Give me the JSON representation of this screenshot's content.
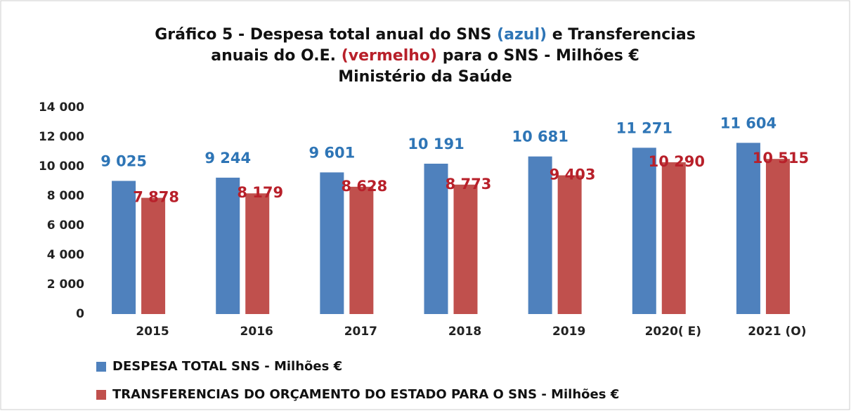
{
  "chart_data": {
    "type": "bar",
    "title": [
      [
        "Gráfico 5 - Despesa total anual do SNS",
        "(azul)",
        "e Transferencias"
      ],
      [
        "anuais do O.E.",
        "(vermelho)",
        "para o SNS - Milhões €"
      ],
      [
        "Ministério da Saúde"
      ]
    ],
    "categories": [
      "2015",
      "2016",
      "2017",
      "2018",
      "2019",
      "2020( E)",
      "2021 (O)"
    ],
    "series": [
      {
        "name": "DESPESA TOTAL SNS - Milhões €",
        "color": "#4f81bd",
        "label_color": "#2e75b6",
        "values": [
          9025,
          9244,
          9601,
          10191,
          10681,
          11271,
          11604
        ],
        "value_labels": [
          "9 025",
          "9 244",
          "9 601",
          "10 191",
          "10 681",
          "11 271",
          "11 604"
        ]
      },
      {
        "name": "TRANSFERENCIAS DO ORÇAMENTO DO ESTADO PARA O SNS - Milhões €",
        "color": "#c0504d",
        "label_color": "#b8202a",
        "values": [
          7878,
          8179,
          8628,
          8773,
          9403,
          10290,
          10515
        ],
        "value_labels": [
          "7 878",
          "8 179",
          "8 628",
          "8 773",
          "9 403",
          "10 290",
          "10 515"
        ]
      }
    ],
    "ylim": [
      0,
      14000
    ],
    "yticks": [
      0,
      {
        "value": 2000,
        "label": "2 000"
      },
      {
        "value": 4000,
        "label": "4 000"
      },
      {
        "value": 6000,
        "label": "6 000"
      },
      {
        "value": 8000,
        "label": "8 000"
      },
      {
        "value": 10000,
        "label": "10 000"
      },
      {
        "value": 12000,
        "label": "12 000"
      },
      {
        "value": 14000,
        "label": "14 000"
      }
    ],
    "grid": false,
    "legend": "bottom"
  }
}
